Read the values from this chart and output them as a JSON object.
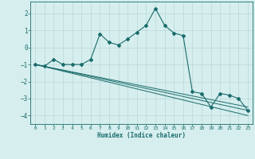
{
  "xlabel": "Humidex (Indice chaleur)",
  "ylabel": "",
  "background_color": "#d6eeee",
  "line_color": "#1a6b6b",
  "grid_color": "#b8d8d8",
  "xlim": [
    -0.5,
    23.5
  ],
  "ylim": [
    -4.5,
    2.7
  ],
  "yticks": [
    -4,
    -3,
    -2,
    -1,
    0,
    1,
    2
  ],
  "xticks": [
    0,
    1,
    2,
    3,
    4,
    5,
    6,
    7,
    8,
    9,
    10,
    11,
    12,
    13,
    14,
    15,
    16,
    17,
    18,
    19,
    20,
    21,
    22,
    23
  ],
  "series": [
    {
      "x": [
        0,
        1,
        2,
        3,
        4,
        5,
        6,
        7,
        8,
        9,
        10,
        11,
        12,
        13,
        14,
        15,
        16,
        17,
        18,
        19,
        20,
        21,
        22,
        23
      ],
      "y": [
        -1.0,
        -1.1,
        -0.7,
        -1.0,
        -1.0,
        -1.0,
        -0.7,
        0.8,
        0.3,
        0.15,
        0.5,
        0.9,
        1.3,
        2.3,
        1.3,
        0.85,
        0.7,
        -2.6,
        -2.7,
        -3.5,
        -2.7,
        -2.8,
        -3.0,
        -3.7
      ],
      "style": "line_with_markers"
    },
    {
      "x": [
        0,
        23
      ],
      "y": [
        -1.0,
        -3.7
      ],
      "style": "line_only"
    },
    {
      "x": [
        0,
        23
      ],
      "y": [
        -1.0,
        -3.5
      ],
      "style": "line_only"
    },
    {
      "x": [
        0,
        23
      ],
      "y": [
        -1.0,
        -4.0
      ],
      "style": "line_only"
    }
  ]
}
